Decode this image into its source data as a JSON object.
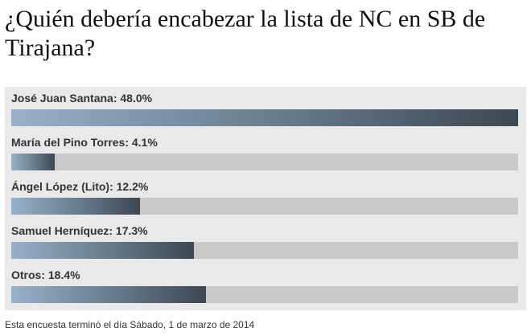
{
  "title": "¿Quién debería encabezar la lista de NC en SB de Tirajana?",
  "footer": "Esta encuesta terminó el día Sábado, 1 de marzo de 2014",
  "colors": {
    "fill_start": "#97b1c9",
    "fill_end": "#3d4853",
    "track": "#c9c9c9",
    "panel": "#e9e9e9"
  },
  "chart_data": {
    "type": "bar",
    "orientation": "horizontal",
    "categories": [
      "José Juan Santana",
      "María del Pino Torres",
      "Ángel López (Lito)",
      "Samuel Herníquez",
      "Otros"
    ],
    "values": [
      48.0,
      4.1,
      12.2,
      17.3,
      18.4
    ],
    "labels": [
      "José Juan Santana: 48.0%",
      "María del Pino Torres: 4.1%",
      "Ángel López (Lito): 12.2%",
      "Samuel Herníquez: 17.3%",
      "Otros: 18.4%"
    ],
    "title": "¿Quién debería encabezar la lista de NC en SB de Tirajana?",
    "xlabel": "",
    "ylabel": ""
  }
}
